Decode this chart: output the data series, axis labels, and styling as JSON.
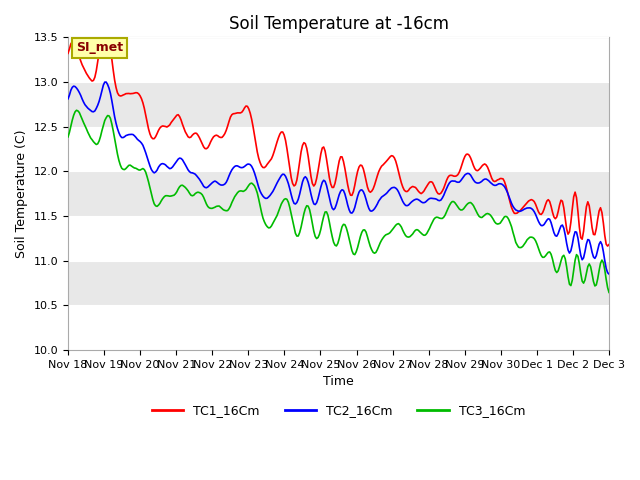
{
  "title": "Soil Temperature at -16cm",
  "xlabel": "Time",
  "ylabel": "Soil Temperature (C)",
  "ylim": [
    10.0,
    13.5
  ],
  "yticks": [
    10.0,
    10.5,
    11.0,
    11.5,
    12.0,
    12.5,
    13.0,
    13.5
  ],
  "xtick_labels": [
    "Nov 18",
    "Nov 19",
    "Nov 20",
    "Nov 21",
    "Nov 22",
    "Nov 23",
    "Nov 24",
    "Nov 25",
    "Nov 26",
    "Nov 27",
    "Nov 28",
    "Nov 29",
    "Nov 30",
    "Dec 1",
    "Dec 2",
    "Dec 3"
  ],
  "series": {
    "TC1_16Cm": {
      "color": "#ff0000",
      "linewidth": 1.2
    },
    "TC2_16Cm": {
      "color": "#0000ff",
      "linewidth": 1.2
    },
    "TC3_16Cm": {
      "color": "#00bb00",
      "linewidth": 1.2
    }
  },
  "legend_labels": [
    "TC1_16Cm",
    "TC2_16Cm",
    "TC3_16Cm"
  ],
  "legend_colors": [
    "#ff0000",
    "#0000ff",
    "#00bb00"
  ],
  "annotation_text": "SI_met",
  "annotation_bg": "#ffffaa",
  "annotation_border": "#aaaa00",
  "annotation_text_color": "#880000",
  "band_colors": [
    "#ffffff",
    "#e8e8e8"
  ],
  "fig_bg_color": "#ffffff",
  "title_fontsize": 12,
  "axis_fontsize": 9,
  "tick_fontsize": 8
}
